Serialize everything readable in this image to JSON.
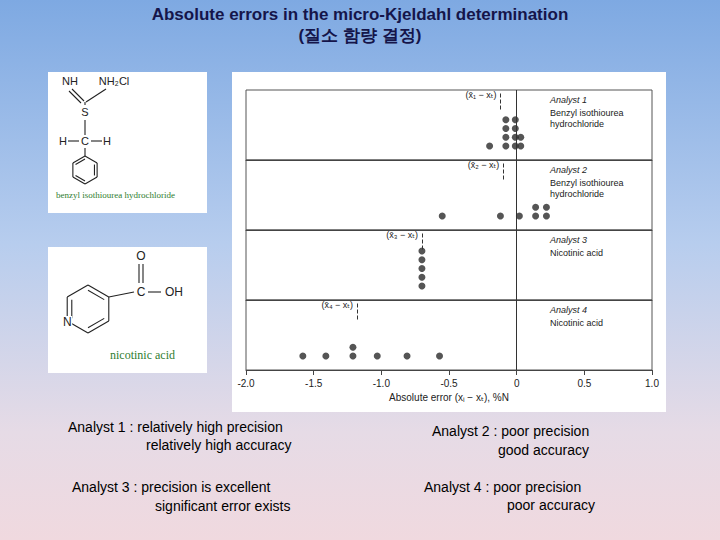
{
  "title": [
    "Absolute errors in the micro-Kjeldahl determination",
    "(질소 함량 결정)"
  ],
  "structures": [
    {
      "atoms": {
        "nh": "NH",
        "nh2cl": "NH₂Cl",
        "s": "S",
        "h_left": "H",
        "c": "C",
        "h_right": "H"
      },
      "caption": "benzyl isothiourea hydrochloride"
    },
    {
      "atoms": {
        "o": "O",
        "c": "C",
        "oh": "OH",
        "n": "N"
      },
      "caption": "nicotinic acid"
    }
  ],
  "captions": [
    [
      "Analyst 1 : relatively high precision",
      "relatively high accuracy"
    ],
    [
      "Analyst 2 : poor precision",
      "good accuracy"
    ],
    [
      "Analyst 3 : precision is excellent",
      "significant error exists"
    ],
    [
      "Analyst 4 : poor precision",
      "poor accuracy"
    ]
  ],
  "chart_data": {
    "type": "scatter",
    "xlabel": "Absolute error (xᵢ − xₜ), %N",
    "xlim": [
      -2,
      1
    ],
    "xticks": [
      {
        "value": -2,
        "label": "-2.0"
      },
      -1.5,
      {
        "value": -1,
        "label": "-1.0"
      },
      -0.5,
      0,
      0.5,
      {
        "value": 1,
        "label": "1.0"
      }
    ],
    "tick_labels": "x",
    "grid": false,
    "color": "#2b2b2b",
    "marker": "circle",
    "reference": 0,
    "series": [
      {
        "name": "Analyst 1",
        "sample": "Benzyl isothiourea\nhydrochloride",
        "values": [
          -0.2,
          -0.08,
          -0.08,
          -0.08,
          -0.08,
          -0.01,
          -0.01,
          -0.01,
          -0.01,
          0.03,
          0.03
        ],
        "mean": -0.12,
        "mean_label": "(x̄₁ − xₜ)"
      },
      {
        "name": "Analyst 2",
        "sample": "Benzyl isothiourea\nhydrochloride",
        "values": [
          -0.55,
          -0.12,
          0.02,
          0.14,
          0.14,
          0.22,
          0.22
        ],
        "mean": -0.1,
        "mean_label": "(x̄₂ − xₜ)"
      },
      {
        "name": "Analyst 3",
        "sample": "Nicotinic acid",
        "values": [
          -0.7,
          -0.7,
          -0.7,
          -0.7,
          -0.7
        ],
        "mean": -0.7,
        "mean_label": "(x̄₃ − xₜ)"
      },
      {
        "name": "Analyst 4",
        "sample": "Nicotinic acid",
        "values": [
          -1.58,
          -1.41,
          -1.21,
          -1.21,
          -1.03,
          -0.81,
          -0.57
        ],
        "mean": -1.18,
        "mean_label": "(x̄₄ − xₜ)"
      }
    ]
  }
}
